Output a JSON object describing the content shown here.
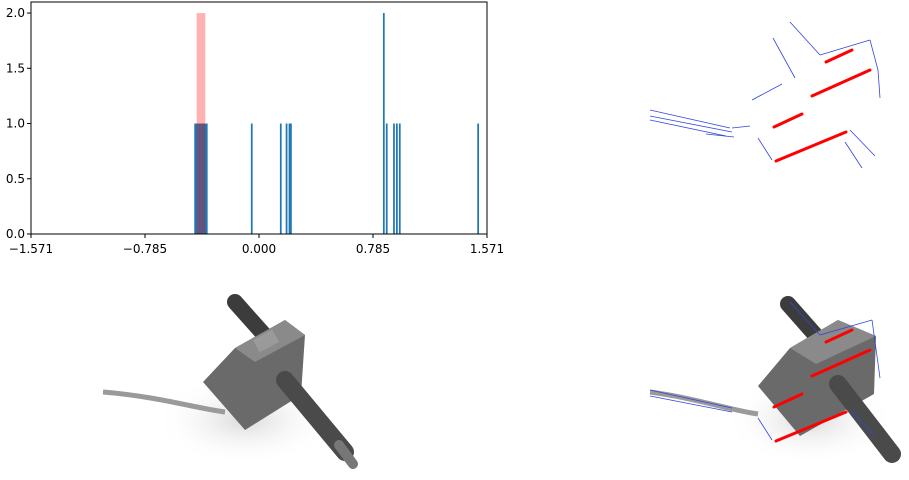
{
  "chart_data": {
    "type": "bar",
    "title": "",
    "xlabel": "",
    "ylabel": "",
    "xlim": [
      -1.571,
      1.571
    ],
    "ylim": [
      0,
      2.1
    ],
    "x_ticks": [
      "−1.571",
      "−0.785",
      "0.000",
      "0.785",
      "1.571"
    ],
    "y_ticks": [
      "0.0",
      "0.5",
      "1.0",
      "1.5",
      "2.0"
    ],
    "grid": false,
    "series": [
      {
        "color": "#1f77b4",
        "bar_width": 0.012,
        "x": [
          -0.44,
          -0.43,
          -0.42,
          -0.41,
          -0.4,
          -0.39,
          -0.38,
          -0.37,
          -0.36,
          -0.05,
          0.15,
          0.19,
          0.21,
          0.22,
          0.86,
          0.88,
          0.93,
          0.95,
          0.97,
          1.51
        ],
        "y": [
          1,
          1,
          1,
          1,
          1,
          1,
          1,
          1,
          1,
          1,
          1,
          1,
          1,
          1,
          2,
          1,
          1,
          1,
          1,
          1
        ]
      },
      {
        "color": "#ff0000",
        "alpha": 0.3,
        "bar_width": 0.06,
        "x": [
          -0.4
        ],
        "y": [
          2
        ]
      }
    ]
  }
}
